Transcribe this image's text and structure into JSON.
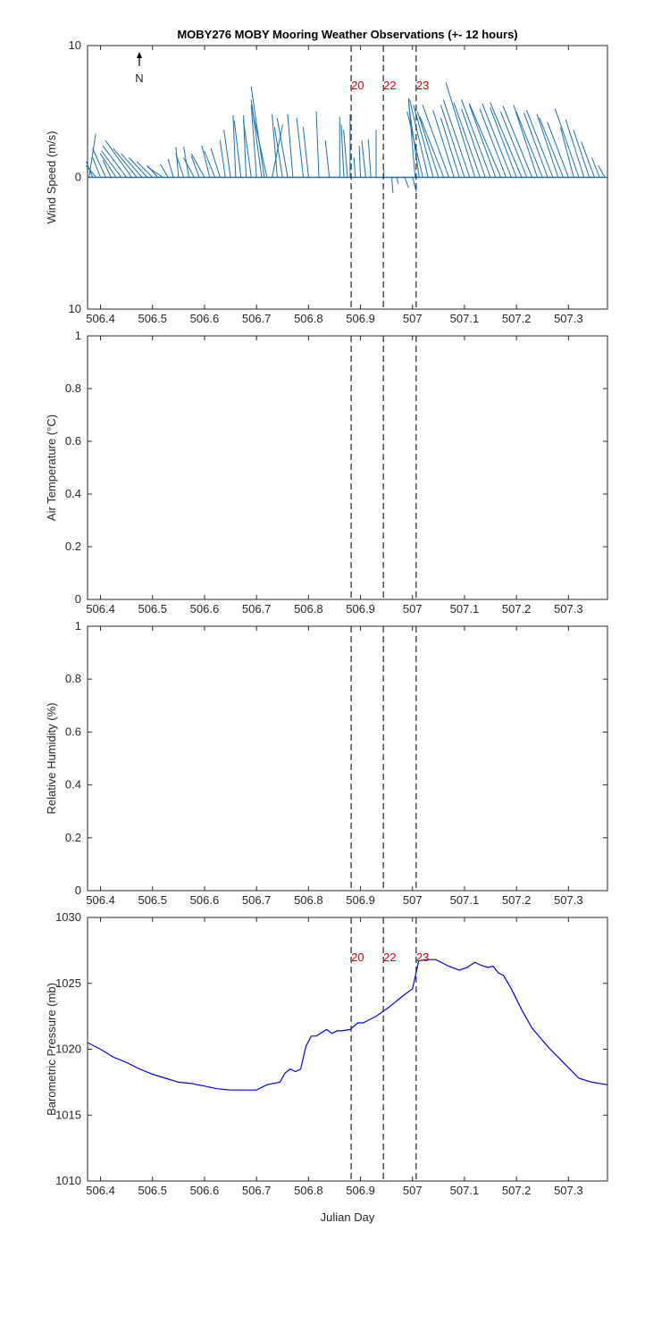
{
  "title": "MOBY276 MOBY Mooring Weather Observations (+- 12 hours)",
  "north_label": "N",
  "xlabel": "Julian Day",
  "chart_data": [
    {
      "type": "line",
      "panel": "wind",
      "ylabel": "Wind Speed (m/s)",
      "xlim": [
        506.375,
        507.375
      ],
      "ylim": [
        -10,
        10
      ],
      "y_ticks": [
        10,
        0,
        -10
      ],
      "y_tick_labels": [
        "10",
        "0",
        "10"
      ],
      "x_ticks": [
        506.4,
        506.5,
        506.6,
        506.7,
        506.8,
        506.9,
        507,
        507.1,
        507.2,
        507.3
      ],
      "x_tick_labels": [
        "506.4",
        "506.5",
        "506.6",
        "506.7",
        "506.8",
        "506.9",
        "507",
        "507.1",
        "507.2",
        "507.3"
      ],
      "markers": [
        {
          "x": 506.882,
          "label": "20"
        },
        {
          "x": 506.944,
          "label": "22"
        },
        {
          "x": 507.007,
          "label": "23"
        }
      ],
      "wind_sticks": [
        {
          "x": 506.378,
          "u": 0.5,
          "v": 3.3
        },
        {
          "x": 506.385,
          "u": -0.5,
          "v": 1.2
        },
        {
          "x": 506.392,
          "u": -0.8,
          "v": 0.9
        },
        {
          "x": 506.4,
          "u": -0.6,
          "v": 1.5
        },
        {
          "x": 506.41,
          "u": -1.0,
          "v": 2.2
        },
        {
          "x": 506.42,
          "u": -0.6,
          "v": 1.3
        },
        {
          "x": 506.43,
          "u": -1.2,
          "v": 1.8
        },
        {
          "x": 506.44,
          "u": -1.5,
          "v": 2.0
        },
        {
          "x": 506.45,
          "u": -1.8,
          "v": 2.4
        },
        {
          "x": 506.46,
          "u": -2.0,
          "v": 2.8
        },
        {
          "x": 506.47,
          "u": -1.8,
          "v": 2.2
        },
        {
          "x": 506.48,
          "u": -1.6,
          "v": 1.8
        },
        {
          "x": 506.49,
          "u": -1.4,
          "v": 1.5
        },
        {
          "x": 506.5,
          "u": -1.2,
          "v": 1.2
        },
        {
          "x": 506.51,
          "u": -0.8,
          "v": 0.9
        },
        {
          "x": 506.52,
          "u": -1.2,
          "v": 0.8
        },
        {
          "x": 506.53,
          "u": -0.6,
          "v": 1.0
        },
        {
          "x": 506.54,
          "u": -0.4,
          "v": 1.4
        },
        {
          "x": 506.55,
          "u": -0.2,
          "v": 2.3
        },
        {
          "x": 506.56,
          "u": -0.6,
          "v": 1.8
        },
        {
          "x": 506.57,
          "u": -0.4,
          "v": 2.3
        },
        {
          "x": 506.58,
          "u": -0.8,
          "v": 1.5
        },
        {
          "x": 506.59,
          "u": -0.6,
          "v": 1.6
        },
        {
          "x": 506.6,
          "u": -1.0,
          "v": 1.8
        },
        {
          "x": 506.61,
          "u": -0.6,
          "v": 2.4
        },
        {
          "x": 506.62,
          "u": -0.8,
          "v": 2.0
        },
        {
          "x": 506.63,
          "u": -0.7,
          "v": 2.2
        },
        {
          "x": 506.64,
          "u": -0.4,
          "v": 2.8
        },
        {
          "x": 506.65,
          "u": -0.5,
          "v": 3.6
        },
        {
          "x": 506.66,
          "u": -0.2,
          "v": 4.7
        },
        {
          "x": 506.67,
          "u": -0.5,
          "v": 4.3
        },
        {
          "x": 506.68,
          "u": -0.2,
          "v": 4.7
        },
        {
          "x": 506.69,
          "u": -0.6,
          "v": 4.3
        },
        {
          "x": 506.7,
          "u": -0.4,
          "v": 5.5
        },
        {
          "x": 506.71,
          "u": -0.8,
          "v": 5.9
        },
        {
          "x": 506.715,
          "u": -1.0,
          "v": 6.9
        },
        {
          "x": 506.72,
          "u": -1.2,
          "v": 5.5
        },
        {
          "x": 506.73,
          "u": 0.8,
          "v": 4.0
        },
        {
          "x": 506.74,
          "u": -0.4,
          "v": 4.8
        },
        {
          "x": 506.75,
          "u": -0.6,
          "v": 3.8
        },
        {
          "x": 506.76,
          "u": -0.8,
          "v": 4.5
        },
        {
          "x": 506.77,
          "u": -0.4,
          "v": 4.8
        },
        {
          "x": 506.79,
          "u": -0.5,
          "v": 4.5
        },
        {
          "x": 506.8,
          "u": -0.4,
          "v": 3.8
        },
        {
          "x": 506.82,
          "u": -0.2,
          "v": 5.0
        },
        {
          "x": 506.84,
          "u": -0.3,
          "v": 2.8
        },
        {
          "x": 506.86,
          "u": 0.0,
          "v": 4.6
        },
        {
          "x": 506.868,
          "u": -0.2,
          "v": 4.0
        },
        {
          "x": 506.875,
          "u": -0.3,
          "v": 3.6
        },
        {
          "x": 506.88,
          "u": 0.0,
          "v": 4.8
        },
        {
          "x": 506.89,
          "u": -0.1,
          "v": 1.5
        },
        {
          "x": 506.9,
          "u": -0.1,
          "v": 2.4
        },
        {
          "x": 506.91,
          "u": -0.3,
          "v": 2.8
        },
        {
          "x": 506.92,
          "u": -0.2,
          "v": 2.9
        },
        {
          "x": 506.93,
          "u": 0.0,
          "v": 3.6
        },
        {
          "x": 506.945,
          "u": 0.0,
          "v": 0.6
        },
        {
          "x": 506.96,
          "u": 0.1,
          "v": -1.2
        },
        {
          "x": 506.97,
          "u": 0.1,
          "v": -0.5
        },
        {
          "x": 506.985,
          "u": 0.3,
          "v": -0.8
        },
        {
          "x": 507.0,
          "u": 0.3,
          "v": -1.1
        },
        {
          "x": 507.005,
          "u": -0.5,
          "v": 6.0
        },
        {
          "x": 507.013,
          "u": -0.8,
          "v": 5.5
        },
        {
          "x": 507.02,
          "u": -1.2,
          "v": 5.0
        },
        {
          "x": 507.03,
          "u": -1.4,
          "v": 5.9
        },
        {
          "x": 507.04,
          "u": -1.5,
          "v": 5.5
        },
        {
          "x": 507.05,
          "u": -1.6,
          "v": 5.0
        },
        {
          "x": 507.06,
          "u": -1.8,
          "v": 4.6
        },
        {
          "x": 507.07,
          "u": -2.0,
          "v": 5.5
        },
        {
          "x": 507.08,
          "u": -1.6,
          "v": 5.1
        },
        {
          "x": 507.09,
          "u": -1.4,
          "v": 4.5
        },
        {
          "x": 507.1,
          "u": -1.8,
          "v": 5.5
        },
        {
          "x": 507.11,
          "u": -2.0,
          "v": 5.9
        },
        {
          "x": 507.12,
          "u": -2.2,
          "v": 7.2
        },
        {
          "x": 507.13,
          "u": -2.0,
          "v": 5.7
        },
        {
          "x": 507.14,
          "u": -1.8,
          "v": 5.2
        },
        {
          "x": 507.15,
          "u": -2.2,
          "v": 5.9
        },
        {
          "x": 507.16,
          "u": -2.0,
          "v": 5.5
        },
        {
          "x": 507.17,
          "u": -2.4,
          "v": 5.6
        },
        {
          "x": 507.18,
          "u": -2.0,
          "v": 5.2
        },
        {
          "x": 507.19,
          "u": -2.2,
          "v": 5.6
        },
        {
          "x": 507.2,
          "u": -2.0,
          "v": 5.3
        },
        {
          "x": 507.21,
          "u": -2.4,
          "v": 5.7
        },
        {
          "x": 507.22,
          "u": -2.0,
          "v": 5.0
        },
        {
          "x": 507.23,
          "u": -2.2,
          "v": 5.4
        },
        {
          "x": 507.24,
          "u": -1.8,
          "v": 5.5
        },
        {
          "x": 507.25,
          "u": -2.0,
          "v": 5.0
        },
        {
          "x": 507.26,
          "u": -1.8,
          "v": 4.9
        },
        {
          "x": 507.27,
          "u": -2.0,
          "v": 5.1
        },
        {
          "x": 507.28,
          "u": -1.6,
          "v": 4.8
        },
        {
          "x": 507.29,
          "u": -1.8,
          "v": 4.5
        },
        {
          "x": 507.3,
          "u": -1.6,
          "v": 4.2
        },
        {
          "x": 507.31,
          "u": -1.0,
          "v": 3.8
        },
        {
          "x": 507.32,
          "u": -1.8,
          "v": 5.2
        },
        {
          "x": 507.33,
          "u": -1.4,
          "v": 4.4
        },
        {
          "x": 507.34,
          "u": -1.2,
          "v": 3.6
        },
        {
          "x": 507.35,
          "u": -1.0,
          "v": 2.7
        },
        {
          "x": 507.36,
          "u": -0.6,
          "v": 1.5
        },
        {
          "x": 507.37,
          "u": -0.5,
          "v": 0.9
        }
      ]
    },
    {
      "type": "line",
      "panel": "air_temperature",
      "ylabel": "Air Temperature (°C)",
      "xlim": [
        506.375,
        507.375
      ],
      "ylim": [
        0,
        1
      ],
      "y_ticks": [
        0,
        0.2,
        0.4,
        0.6,
        0.8,
        1
      ],
      "y_tick_labels": [
        "0",
        "0.2",
        "0.4",
        "0.6",
        "0.8",
        "1"
      ],
      "x_ticks": [
        506.4,
        506.5,
        506.6,
        506.7,
        506.8,
        506.9,
        507,
        507.1,
        507.2,
        507.3
      ],
      "x_tick_labels": [
        "506.4",
        "506.5",
        "506.6",
        "506.7",
        "506.8",
        "506.9",
        "507",
        "507.1",
        "507.2",
        "507.3"
      ],
      "markers": [
        {
          "x": 506.882
        },
        {
          "x": 506.944
        },
        {
          "x": 507.007
        }
      ]
    },
    {
      "type": "line",
      "panel": "relative_humidity",
      "ylabel": "Relative Humidity (%)",
      "xlim": [
        506.375,
        507.375
      ],
      "ylim": [
        0,
        1
      ],
      "y_ticks": [
        0,
        0.2,
        0.4,
        0.6,
        0.8,
        1
      ],
      "y_tick_labels": [
        "0",
        "0.2",
        "0.4",
        "0.6",
        "0.8",
        "1"
      ],
      "x_ticks": [
        506.4,
        506.5,
        506.6,
        506.7,
        506.8,
        506.9,
        507,
        507.1,
        507.2,
        507.3
      ],
      "x_tick_labels": [
        "506.4",
        "506.5",
        "506.6",
        "506.7",
        "506.8",
        "506.9",
        "507",
        "507.1",
        "507.2",
        "507.3"
      ],
      "markers": [
        {
          "x": 506.882
        },
        {
          "x": 506.944
        },
        {
          "x": 507.007
        }
      ]
    },
    {
      "type": "line",
      "panel": "barometric_pressure",
      "ylabel": "Barometric Pressure (mb)",
      "xlim": [
        506.375,
        507.375
      ],
      "ylim": [
        1010,
        1030
      ],
      "y_ticks": [
        1010,
        1015,
        1020,
        1025,
        1030
      ],
      "y_tick_labels": [
        "1010",
        "1015",
        "1020",
        "1025",
        "1030"
      ],
      "x_ticks": [
        506.4,
        506.5,
        506.6,
        506.7,
        506.8,
        506.9,
        507,
        507.1,
        507.2,
        507.3
      ],
      "x_tick_labels": [
        "506.4",
        "506.5",
        "506.6",
        "506.7",
        "506.8",
        "506.9",
        "507",
        "507.1",
        "507.2",
        "507.3"
      ],
      "markers": [
        {
          "x": 506.882,
          "label": "20"
        },
        {
          "x": 506.944,
          "label": "22"
        },
        {
          "x": 507.007,
          "label": "23"
        }
      ],
      "line_color": "#0000e6",
      "x": [
        506.375,
        506.4,
        506.425,
        506.45,
        506.475,
        506.5,
        506.525,
        506.55,
        506.575,
        506.6,
        506.625,
        506.65,
        506.675,
        506.7,
        506.72,
        506.745,
        506.755,
        506.765,
        506.775,
        506.785,
        506.795,
        506.805,
        506.815,
        506.835,
        506.845,
        506.855,
        506.865,
        506.88,
        506.895,
        506.905,
        506.93,
        506.955,
        506.98,
        507.0,
        507.012,
        507.025,
        507.045,
        507.07,
        507.09,
        507.105,
        507.12,
        507.13,
        507.145,
        507.155,
        507.165,
        507.175,
        507.19,
        507.21,
        507.23,
        507.26,
        507.29,
        507.32,
        507.345,
        507.375
      ],
      "y": [
        1020.5,
        1020.0,
        1019.4,
        1019.0,
        1018.5,
        1018.1,
        1017.8,
        1017.5,
        1017.4,
        1017.2,
        1017.0,
        1016.9,
        1016.9,
        1016.9,
        1017.3,
        1017.5,
        1018.2,
        1018.5,
        1018.3,
        1018.5,
        1020.2,
        1021.0,
        1021.0,
        1021.5,
        1021.2,
        1021.4,
        1021.4,
        1021.5,
        1022.0,
        1022.0,
        1022.5,
        1023.2,
        1024.0,
        1024.6,
        1026.7,
        1026.8,
        1026.8,
        1026.3,
        1026.0,
        1026.2,
        1026.6,
        1026.4,
        1026.2,
        1026.3,
        1025.8,
        1025.6,
        1024.6,
        1023.0,
        1021.6,
        1020.2,
        1019.0,
        1017.8,
        1017.5,
        1017.3
      ]
    }
  ]
}
